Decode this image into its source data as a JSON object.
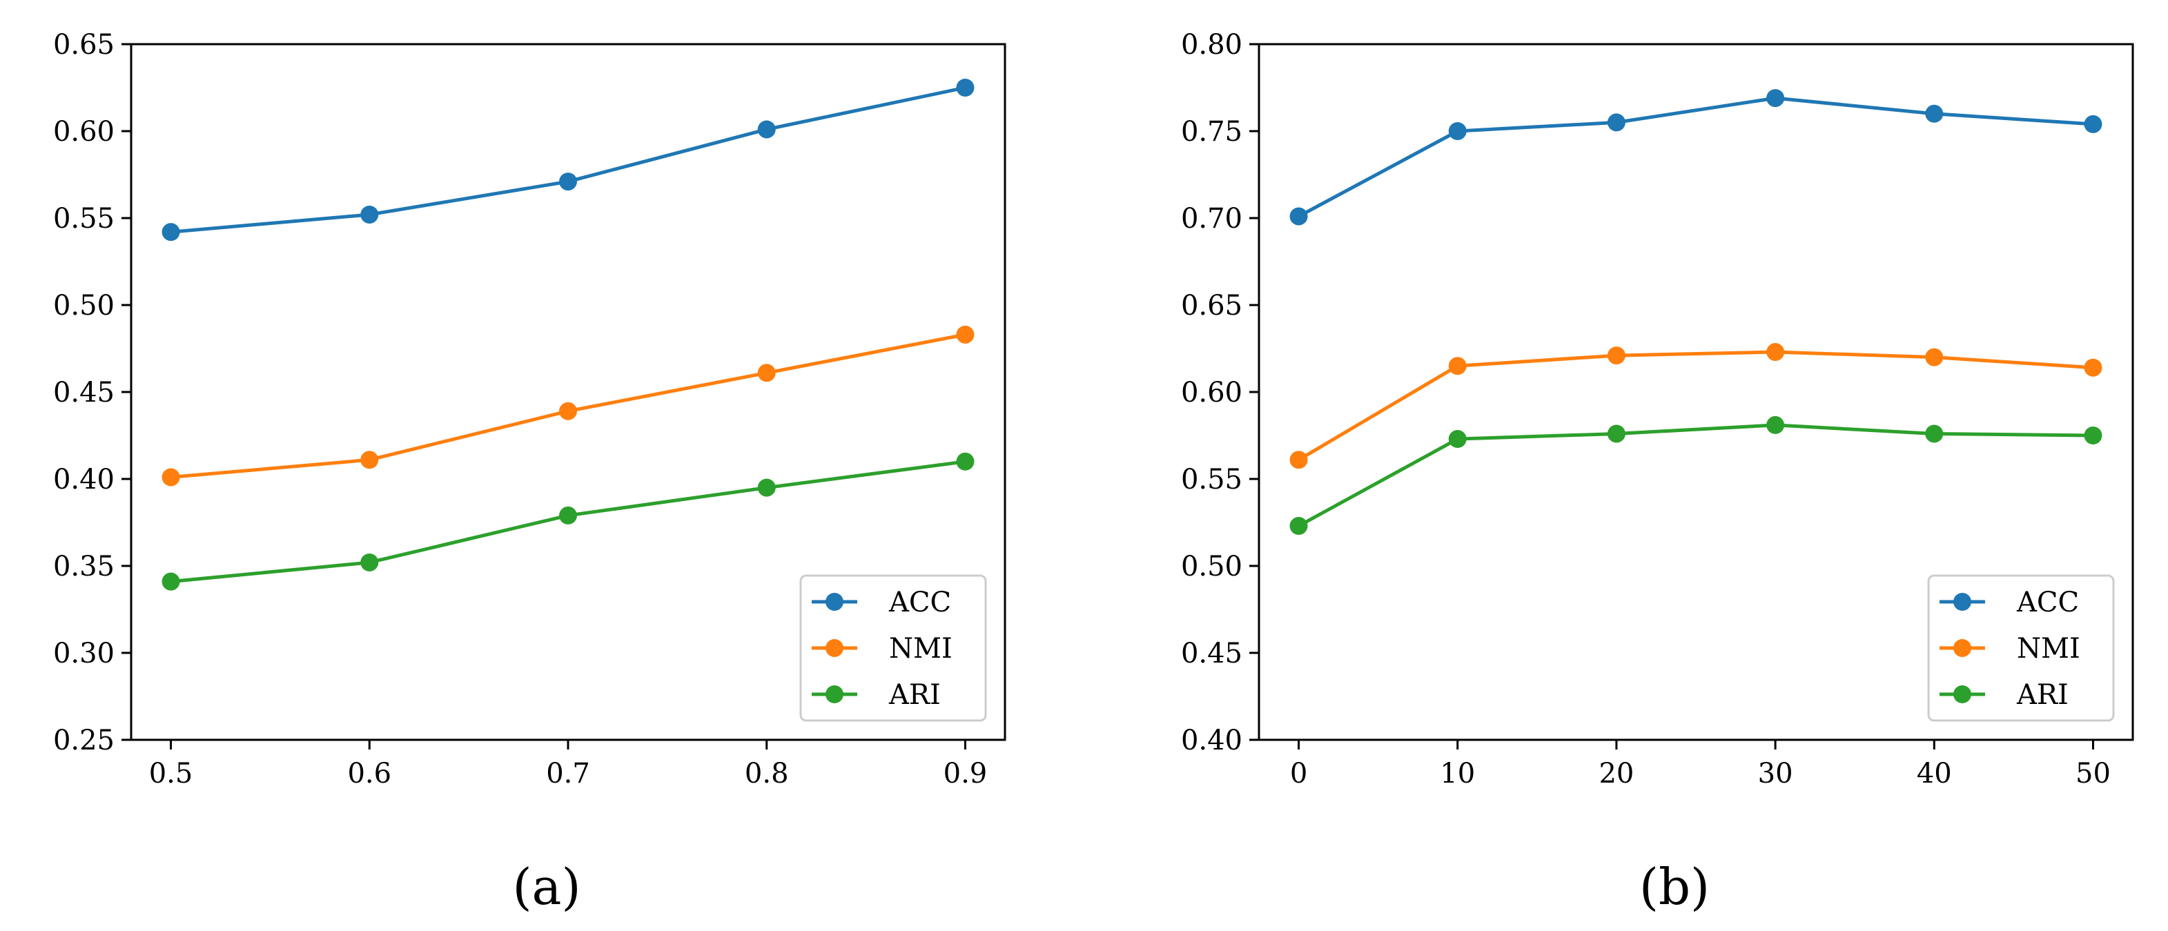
{
  "chart_data": [
    {
      "type": "line",
      "caption": "(a)",
      "x": [
        0.5,
        0.6,
        0.7,
        0.8,
        0.9
      ],
      "x_tick_labels": [
        "0.5",
        "0.6",
        "0.7",
        "0.8",
        "0.9"
      ],
      "xlim": [
        0.48,
        0.92
      ],
      "y_ticks": [
        0.25,
        0.3,
        0.35,
        0.4,
        0.45,
        0.5,
        0.55,
        0.6,
        0.65
      ],
      "y_tick_labels": [
        "0.25",
        "0.30",
        "0.35",
        "0.40",
        "0.45",
        "0.50",
        "0.55",
        "0.60",
        "0.65"
      ],
      "ylim": [
        0.25,
        0.65
      ],
      "series": [
        {
          "name": "ACC",
          "color": "#1f77b4",
          "values": [
            0.542,
            0.552,
            0.571,
            0.601,
            0.625
          ]
        },
        {
          "name": "NMI",
          "color": "#ff7f0e",
          "values": [
            0.401,
            0.411,
            0.439,
            0.461,
            0.483
          ]
        },
        {
          "name": "ARI",
          "color": "#2ca02c",
          "values": [
            0.341,
            0.352,
            0.379,
            0.395,
            0.41
          ]
        }
      ],
      "legend": "lower-right",
      "grid": false
    },
    {
      "type": "line",
      "caption": "(b)",
      "x": [
        0,
        10,
        20,
        30,
        40,
        50
      ],
      "x_tick_labels": [
        "0",
        "10",
        "20",
        "30",
        "40",
        "50"
      ],
      "xlim": [
        -2.5,
        52.5
      ],
      "y_ticks": [
        0.4,
        0.45,
        0.5,
        0.55,
        0.6,
        0.65,
        0.7,
        0.75,
        0.8
      ],
      "y_tick_labels": [
        "0.40",
        "0.45",
        "0.50",
        "0.55",
        "0.60",
        "0.65",
        "0.70",
        "0.75",
        "0.80"
      ],
      "ylim": [
        0.4,
        0.8
      ],
      "series": [
        {
          "name": "ACC",
          "color": "#1f77b4",
          "values": [
            0.701,
            0.75,
            0.755,
            0.769,
            0.76,
            0.754
          ]
        },
        {
          "name": "NMI",
          "color": "#ff7f0e",
          "values": [
            0.561,
            0.615,
            0.621,
            0.623,
            0.62,
            0.614
          ]
        },
        {
          "name": "ARI",
          "color": "#2ca02c",
          "values": [
            0.523,
            0.573,
            0.576,
            0.581,
            0.576,
            0.575
          ]
        }
      ],
      "legend": "lower-right",
      "grid": false
    }
  ]
}
